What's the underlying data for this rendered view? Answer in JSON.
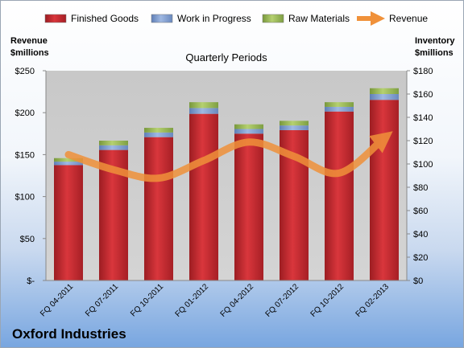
{
  "company": "Oxford Industries",
  "chart_data": {
    "type": "bar",
    "subtype": "stacked-bar-with-line",
    "title": "Quarterly Periods",
    "left_axis_label": [
      "Revenue",
      "$millions"
    ],
    "right_axis_label": [
      "Inventory",
      "$millions"
    ],
    "categories": [
      "FQ 04-2011",
      "FQ 07-2011",
      "FQ 10-2011",
      "FQ 01-2012",
      "FQ 04-2012",
      "FQ 07-2012",
      "FQ 10-2012",
      "FQ 02-2013"
    ],
    "series": [
      {
        "name": "Finished Goods",
        "axis": "right",
        "color": "#c0272d",
        "values": [
          99,
          112,
          123,
          143,
          126,
          129,
          145,
          155
        ]
      },
      {
        "name": "Work in Progress",
        "axis": "right",
        "color": "#7f9fd4",
        "values": [
          3,
          4,
          4,
          5,
          4,
          4,
          4,
          5
        ]
      },
      {
        "name": "Raw Materials",
        "axis": "right",
        "color": "#9bbb59",
        "values": [
          3,
          4,
          4,
          5,
          4,
          4,
          4,
          5
        ]
      },
      {
        "name": "Revenue",
        "axis": "left",
        "type": "line",
        "color": "#f0913a",
        "values": [
          150,
          132,
          122,
          143,
          165,
          148,
          128,
          170
        ]
      }
    ],
    "left_axis": {
      "min": 0,
      "max": 250,
      "step": 50,
      "ticks": [
        "$-",
        "$50",
        "$100",
        "$150",
        "$200",
        "$250"
      ]
    },
    "right_axis": {
      "min": 0,
      "max": 180,
      "step": 20,
      "ticks": [
        "$0",
        "$20",
        "$40",
        "$60",
        "$80",
        "$100",
        "$120",
        "$140",
        "$160",
        "$180"
      ]
    },
    "legend_position": "top",
    "grid": false
  }
}
